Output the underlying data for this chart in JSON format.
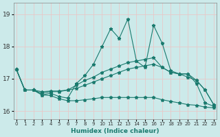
{
  "background_color": "#cceaea",
  "grid_color": "#e8c8c8",
  "line_color": "#1a7a6e",
  "x_labels": [
    "0",
    "1",
    "2",
    "3",
    "4",
    "5",
    "6",
    "7",
    "8",
    "9",
    "10",
    "11",
    "12",
    "13",
    "14",
    "15",
    "16",
    "17",
    "18",
    "19",
    "20",
    "21",
    "22",
    "23"
  ],
  "xlabel": "Humidex (Indice chaleur)",
  "ylim": [
    15.75,
    19.35
  ],
  "yticks": [
    16,
    17,
    18,
    19
  ],
  "ytick_labels": [
    "16",
    "17",
    "18",
    "19"
  ],
  "series": {
    "line1": [
      17.3,
      16.65,
      16.65,
      16.5,
      16.55,
      16.45,
      16.4,
      16.85,
      17.1,
      17.45,
      18.0,
      18.55,
      18.25,
      18.85,
      17.55,
      17.35,
      18.65,
      18.1,
      17.25,
      17.15,
      17.15,
      16.85,
      16.25,
      16.15
    ],
    "line2": [
      17.3,
      16.65,
      16.65,
      16.55,
      16.6,
      16.6,
      16.65,
      16.8,
      16.95,
      17.05,
      17.2,
      17.3,
      17.4,
      17.5,
      17.55,
      17.6,
      17.65,
      17.35,
      17.2,
      17.15,
      17.15,
      16.95,
      16.65,
      16.2
    ],
    "line3": [
      17.3,
      16.65,
      16.65,
      16.6,
      16.62,
      16.62,
      16.65,
      16.7,
      16.8,
      16.9,
      17.0,
      17.1,
      17.2,
      17.3,
      17.35,
      17.4,
      17.45,
      17.35,
      17.2,
      17.15,
      17.05,
      16.95,
      16.65,
      16.2
    ],
    "line4": [
      17.3,
      16.65,
      16.65,
      16.5,
      16.48,
      16.38,
      16.32,
      16.32,
      16.35,
      16.38,
      16.42,
      16.42,
      16.42,
      16.42,
      16.42,
      16.42,
      16.42,
      16.35,
      16.3,
      16.25,
      16.2,
      16.18,
      16.12,
      16.1
    ]
  }
}
